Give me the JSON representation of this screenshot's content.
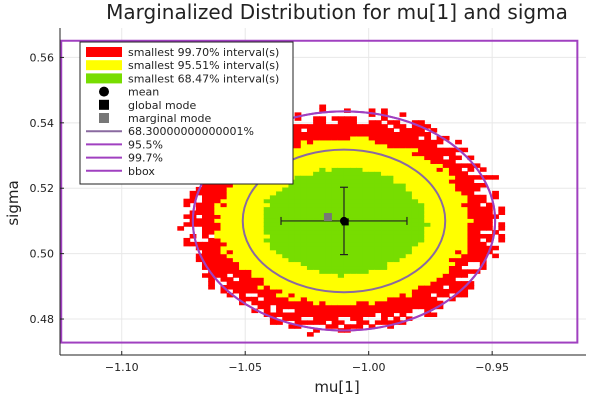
{
  "chart_data": {
    "type": "heatmap",
    "title": "Marginalized Distribution for mu[1] and sigma",
    "xlabel": "mu[1]",
    "ylabel": "sigma",
    "xlim": [
      -1.125,
      -0.912
    ],
    "ylim": [
      0.469,
      0.569
    ],
    "xticks": [
      -1.1,
      -1.05,
      -1.0,
      -0.95
    ],
    "xtick_labels": [
      "−1.10",
      "−1.05",
      "−1.00",
      "−0.95"
    ],
    "yticks": [
      0.48,
      0.5,
      0.52,
      0.54,
      0.56
    ],
    "ytick_labels": [
      "0.48",
      "0.50",
      "0.52",
      "0.54",
      "0.56"
    ],
    "grid": true,
    "legend_position": "top-left",
    "colors": {
      "interval_997": "#ff0000",
      "interval_955": "#ffff00",
      "interval_683": "#77dd00",
      "ellipse": "#a040c0",
      "ellipse_683": "#8a6aa0",
      "bbox": "#a040c0",
      "mean": "#000000",
      "global_mode": "#000000",
      "marginal_mode": "#777777"
    },
    "intervals": [
      {
        "label": "smallest 99.70% interval(s)",
        "rx": 0.0615,
        "ry": 0.0322
      },
      {
        "label": "smallest 95.51% interval(s)",
        "rx": 0.051,
        "ry": 0.0255
      },
      {
        "label": "smallest 68.47% interval(s)",
        "rx": 0.033,
        "ry": 0.0162
      }
    ],
    "center": {
      "x": -1.01,
      "y": 0.51
    },
    "mean": {
      "x": -1.01,
      "y": 0.51,
      "xerr": 0.0255,
      "yerr": 0.0103
    },
    "global_mode": {
      "x": -1.0095,
      "y": 0.5097
    },
    "marginal_mode": {
      "x": -1.0165,
      "y": 0.5112
    },
    "ellipses": [
      {
        "label": "68.30000000000001%",
        "rx": 0.041,
        "ry": 0.0218
      },
      {
        "label": "95.5%",
        "rx": 0.0612,
        "ry": 0.0335
      },
      {
        "label": "99.7%",
        "rx": 0.0612,
        "ry": 0.0335
      }
    ],
    "bbox": {
      "label": "bbox",
      "x0": -1.1245,
      "x1": -0.9155,
      "y0": 0.4728,
      "y1": 0.5651
    },
    "legend_entries": [
      "smallest 99.70% interval(s)",
      "smallest 95.51% interval(s)",
      "smallest 68.47% interval(s)",
      "mean",
      "global mode",
      "marginal mode",
      "68.30000000000001%",
      "95.5%",
      "99.7%",
      "bbox"
    ]
  }
}
